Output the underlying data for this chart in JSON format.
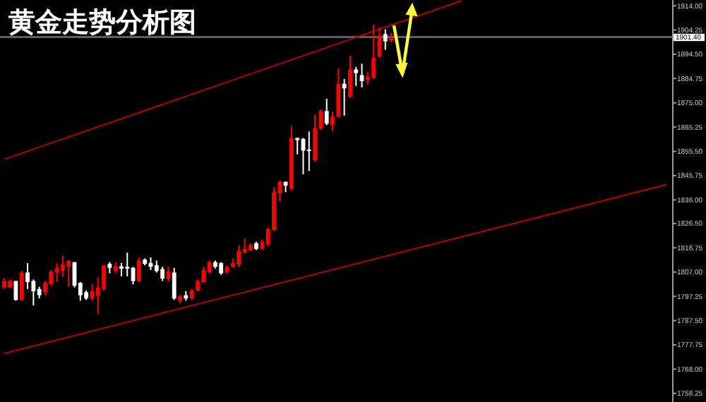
{
  "chart_data": {
    "type": "candlestick",
    "title": "黄金走势分析图",
    "categories": [
      null,
      null,
      null,
      null,
      null,
      null,
      null,
      null,
      null,
      null,
      null,
      null,
      null,
      null,
      null,
      null,
      null,
      null,
      null,
      null,
      null,
      null,
      null,
      null,
      null,
      null,
      null,
      null,
      null,
      null,
      null,
      null,
      null,
      null,
      null,
      null,
      null,
      null,
      null,
      null,
      null,
      null,
      null,
      null,
      null,
      null,
      null,
      null,
      null,
      null,
      null,
      null,
      null,
      null,
      null,
      null,
      null,
      null,
      null,
      null,
      null,
      null,
      null,
      null,
      null,
      null,
      null,
      null,
      null,
      null,
      null,
      null,
      null,
      null,
      null,
      null,
      null,
      null,
      null,
      null,
      null,
      null,
      null,
      null,
      null,
      null,
      null,
      null,
      null,
      null,
      null,
      null,
      null,
      null,
      null,
      null,
      null,
      null,
      null,
      null,
      null,
      null,
      null,
      null,
      null,
      null,
      null,
      null,
      null,
      null,
      null,
      null,
      null,
      null
    ],
    "ohlc": [
      [
        1800.8,
        1804.6,
        1800.2,
        1803.4
      ],
      [
        1800.8,
        1804.0,
        1800.6,
        1803.4
      ],
      [
        1803.4,
        1803.4,
        1795.5,
        1795.8
      ],
      [
        1795.8,
        1807.5,
        1795.5,
        1806.8
      ],
      [
        1806.8,
        1810.6,
        1800.2,
        1803.0
      ],
      [
        1803.4,
        1804.0,
        1793.6,
        1799.3
      ],
      [
        1800.2,
        1801.1,
        1796.4,
        1797.7
      ],
      [
        1798.9,
        1803.4,
        1797.7,
        1802.7
      ],
      [
        1802.1,
        1807.8,
        1801.5,
        1807.2
      ],
      [
        1806.8,
        1810.6,
        1803.0,
        1808.7
      ],
      [
        1807.4,
        1813.5,
        1805.0,
        1810.1
      ],
      [
        1809.1,
        1811.6,
        1801.1,
        1811.6
      ],
      [
        1811.0,
        1811.0,
        1800.8,
        1801.5
      ],
      [
        1802.7,
        1803.0,
        1795.5,
        1797.7
      ],
      [
        1798.9,
        1799.6,
        1795.8,
        1796.4
      ],
      [
        1796.4,
        1802.1,
        1795.5,
        1799.3
      ],
      [
        1797.4,
        1805.0,
        1790.1,
        1800.8
      ],
      [
        1800.2,
        1809.7,
        1799.6,
        1809.7
      ],
      [
        1810.3,
        1811.0,
        1806.5,
        1808.7
      ],
      [
        1807.4,
        1811.0,
        1806.5,
        1809.3
      ],
      [
        1809.3,
        1810.6,
        1805.3,
        1808.4
      ],
      [
        1809.1,
        1814.8,
        1805.3,
        1808.4
      ],
      [
        1808.7,
        1809.1,
        1802.1,
        1803.4
      ],
      [
        1803.4,
        1812.9,
        1803.0,
        1811.6
      ],
      [
        1812.0,
        1812.5,
        1809.7,
        1810.3
      ],
      [
        1810.6,
        1812.9,
        1807.8,
        1809.1
      ],
      [
        1809.7,
        1811.6,
        1806.8,
        1807.4
      ],
      [
        1808.2,
        1809.1,
        1803.4,
        1804.4
      ],
      [
        1804.4,
        1809.1,
        1803.0,
        1807.2
      ],
      [
        1806.8,
        1808.7,
        1795.8,
        1796.4
      ],
      [
        1795.5,
        1797.7,
        1794.5,
        1797.4
      ],
      [
        1797.7,
        1799.3,
        1795.5,
        1796.4
      ],
      [
        1796.4,
        1800.2,
        1795.8,
        1799.6
      ],
      [
        1799.6,
        1804.0,
        1799.3,
        1803.4
      ],
      [
        1803.0,
        1809.1,
        1802.7,
        1807.8
      ],
      [
        1806.8,
        1811.6,
        1806.5,
        1811.0
      ],
      [
        1811.0,
        1811.6,
        1808.4,
        1809.1
      ],
      [
        1810.6,
        1811.0,
        1805.9,
        1806.5
      ],
      [
        1806.8,
        1809.7,
        1806.3,
        1809.1
      ],
      [
        1809.1,
        1812.5,
        1808.7,
        1810.6
      ],
      [
        1810.1,
        1817.8,
        1809.1,
        1815.4
      ],
      [
        1814.8,
        1820.5,
        1814.4,
        1816.3
      ],
      [
        1815.8,
        1818.6,
        1815.4,
        1817.8
      ],
      [
        1818.6,
        1819.2,
        1815.8,
        1816.3
      ],
      [
        1816.3,
        1820.1,
        1815.9,
        1819.2
      ],
      [
        1818.2,
        1824.9,
        1817.3,
        1824.3
      ],
      [
        1823.9,
        1841.0,
        1823.5,
        1839.1
      ],
      [
        1838.7,
        1843.8,
        1835.3,
        1843.3
      ],
      [
        1843.3,
        1843.3,
        1839.1,
        1841.7
      ],
      [
        1840.4,
        1865.6,
        1840.0,
        1860.9
      ],
      [
        1860.9,
        1860.9,
        1854.3,
        1860.0
      ],
      [
        1860.5,
        1860.9,
        1846.3,
        1855.8
      ],
      [
        1856.2,
        1863.4,
        1847.6,
        1855.6
      ],
      [
        1852.0,
        1870.4,
        1851.4,
        1864.7
      ],
      [
        1864.7,
        1872.3,
        1864.1,
        1871.7
      ],
      [
        1871.7,
        1876.6,
        1866.0,
        1866.6
      ],
      [
        1866.0,
        1871.3,
        1863.7,
        1869.4
      ],
      [
        1869.4,
        1888.8,
        1869.1,
        1882.7
      ],
      [
        1882.7,
        1884.6,
        1869.8,
        1880.8
      ],
      [
        1877.4,
        1894.0,
        1877.0,
        1888.4
      ],
      [
        1888.4,
        1889.4,
        1881.8,
        1886.9
      ],
      [
        1886.1,
        1890.7,
        1881.2,
        1883.7
      ],
      [
        1884.2,
        1887.5,
        1882.3,
        1885.6
      ],
      [
        1885.0,
        1906.4,
        1884.6,
        1893.2
      ],
      [
        1893.7,
        1905.4,
        1893.1,
        1902.0
      ],
      [
        1902.6,
        1904.5,
        1896.3,
        1899.7
      ],
      [
        1900.1,
        1903.1,
        1899.3,
        1901.4
      ],
      null,
      null,
      null,
      null,
      null,
      null,
      null,
      null,
      null,
      null,
      null,
      null,
      null,
      null,
      null,
      null,
      null,
      null,
      null,
      null,
      null,
      null,
      null,
      null,
      null,
      null,
      null,
      null,
      null,
      null,
      null,
      null,
      null,
      null,
      null,
      null,
      null,
      null,
      null,
      null,
      null,
      null,
      null,
      null,
      null,
      null,
      null
    ],
    "colors": [
      "#ff0000",
      "#ff0000",
      "#ffffff",
      "#ff0000",
      "#ffffff",
      "#ffffff",
      "#ffffff",
      "#ff0000",
      "#ff0000",
      "#ff0000",
      "#ff0000",
      "#ff0000",
      "#ffffff",
      "#ffffff",
      "#ffffff",
      "#ff0000",
      "#ff0000",
      "#ff0000",
      "#ffffff",
      "#ff0000",
      "#ffffff",
      "#ffffff",
      "#ffffff",
      "#ff0000",
      "#ffffff",
      "#ffffff",
      "#ffffff",
      "#ffffff",
      "#ff0000",
      "#ffffff",
      "#ff0000",
      "#ffffff",
      "#ff0000",
      "#ff0000",
      "#ff0000",
      "#ff0000",
      "#ffffff",
      "#ffffff",
      "#ff0000",
      "#ff0000",
      "#ff0000",
      "#ff0000",
      "#ff0000",
      "#ffffff",
      "#ff0000",
      "#ff0000",
      "#ff0000",
      "#ff0000",
      "#ffffff",
      "#ff0000",
      "#ffffff",
      "#ffffff",
      "#ffffff",
      "#ff0000",
      "#ff0000",
      "#ffffff",
      "#ff0000",
      "#ff0000",
      "#ffffff",
      "#ff0000",
      "#ffffff",
      "#ffffff",
      "#ff0000",
      "#ff0000",
      "#ff0000",
      "#ffffff",
      "#ff0000",
      null,
      null,
      null,
      null,
      null,
      null,
      null,
      null,
      null,
      null,
      null,
      null,
      null,
      null,
      null,
      null,
      null,
      null,
      null,
      null,
      null,
      null,
      null,
      null,
      null,
      null,
      null,
      null,
      null,
      null,
      null,
      null,
      null,
      null,
      null,
      null,
      null,
      null,
      null,
      null,
      null,
      null,
      null,
      null,
      null,
      null,
      null
    ],
    "series": [
      {
        "type": "line",
        "color": "#b00000",
        "values": [
          1852.3,
          null,
          null,
          null,
          null,
          null,
          null,
          null,
          null,
          null,
          null,
          null,
          null,
          null,
          null,
          null,
          null,
          null,
          null,
          null,
          null,
          null,
          null,
          null,
          null,
          null,
          null,
          null,
          null,
          null,
          null,
          null,
          null,
          null,
          null,
          null,
          null,
          null,
          null,
          null,
          null,
          null,
          null,
          null,
          null,
          null,
          null,
          null,
          null,
          null,
          null,
          null,
          null,
          null,
          null,
          null,
          null,
          null,
          null,
          null,
          null,
          null,
          null,
          null,
          null,
          null,
          null,
          null,
          null,
          null,
          null,
          null,
          null,
          null,
          null,
          null,
          null,
          null,
          1916.0,
          null,
          null,
          null,
          null,
          null,
          null,
          null,
          null,
          null,
          null,
          null,
          null,
          null,
          null,
          null,
          null,
          null,
          null,
          null,
          null,
          null,
          null,
          null,
          null,
          null,
          null,
          null,
          null,
          null,
          null,
          null,
          null,
          null,
          null,
          null
        ]
      },
      {
        "type": "line",
        "color": "#b00000",
        "values": [
          1774.3,
          null,
          null,
          null,
          null,
          null,
          null,
          null,
          null,
          null,
          null,
          null,
          null,
          null,
          null,
          null,
          null,
          null,
          null,
          null,
          null,
          null,
          null,
          null,
          null,
          null,
          null,
          null,
          null,
          null,
          null,
          null,
          null,
          null,
          null,
          null,
          null,
          null,
          null,
          null,
          null,
          null,
          null,
          null,
          null,
          null,
          null,
          null,
          null,
          null,
          null,
          null,
          null,
          null,
          null,
          null,
          null,
          null,
          null,
          null,
          null,
          null,
          null,
          null,
          null,
          null,
          null,
          null,
          null,
          null,
          null,
          null,
          null,
          null,
          null,
          null,
          null,
          null,
          null,
          null,
          null,
          null,
          null,
          null,
          null,
          null,
          null,
          null,
          null,
          null,
          null,
          null,
          null,
          null,
          null,
          null,
          null,
          null,
          null,
          null,
          null,
          null,
          null,
          null,
          null,
          null,
          null,
          null,
          null,
          null,
          null,
          null,
          null,
          1842.2
        ]
      }
    ],
    "ylim": [
      1754.8,
      1916.3
    ],
    "yticks": [
      {
        "value": 1914,
        "label": "1914.00"
      },
      {
        "value": 1904.25,
        "label": "1904.25"
      },
      {
        "value": 1894.5,
        "label": "1894.50"
      },
      {
        "value": 1884.75,
        "label": "1884.75"
      },
      {
        "value": 1875,
        "label": "1875.00"
      },
      {
        "value": 1865.25,
        "label": "1865.25"
      },
      {
        "value": 1855.5,
        "label": "1855.50"
      },
      {
        "value": 1845.75,
        "label": "1845.75"
      },
      {
        "value": 1836,
        "label": "1836.00"
      },
      {
        "value": 1826.5,
        "label": "1826.50"
      },
      {
        "value": 1816.75,
        "label": "1816.75"
      },
      {
        "value": 1807,
        "label": "1807.00"
      },
      {
        "value": 1797.25,
        "label": "1797.25"
      },
      {
        "value": 1787.5,
        "label": "1787.50"
      },
      {
        "value": 1777.75,
        "label": "1777.75"
      },
      {
        "value": 1768,
        "label": "1768.00"
      },
      {
        "value": 1758.25,
        "label": "1758.25"
      }
    ],
    "ref_lines": [
      {
        "axis": "y",
        "value": 1901.4,
        "label": "1901.40",
        "color": "#5a6068"
      }
    ],
    "tick_labels": "y"
  }
}
